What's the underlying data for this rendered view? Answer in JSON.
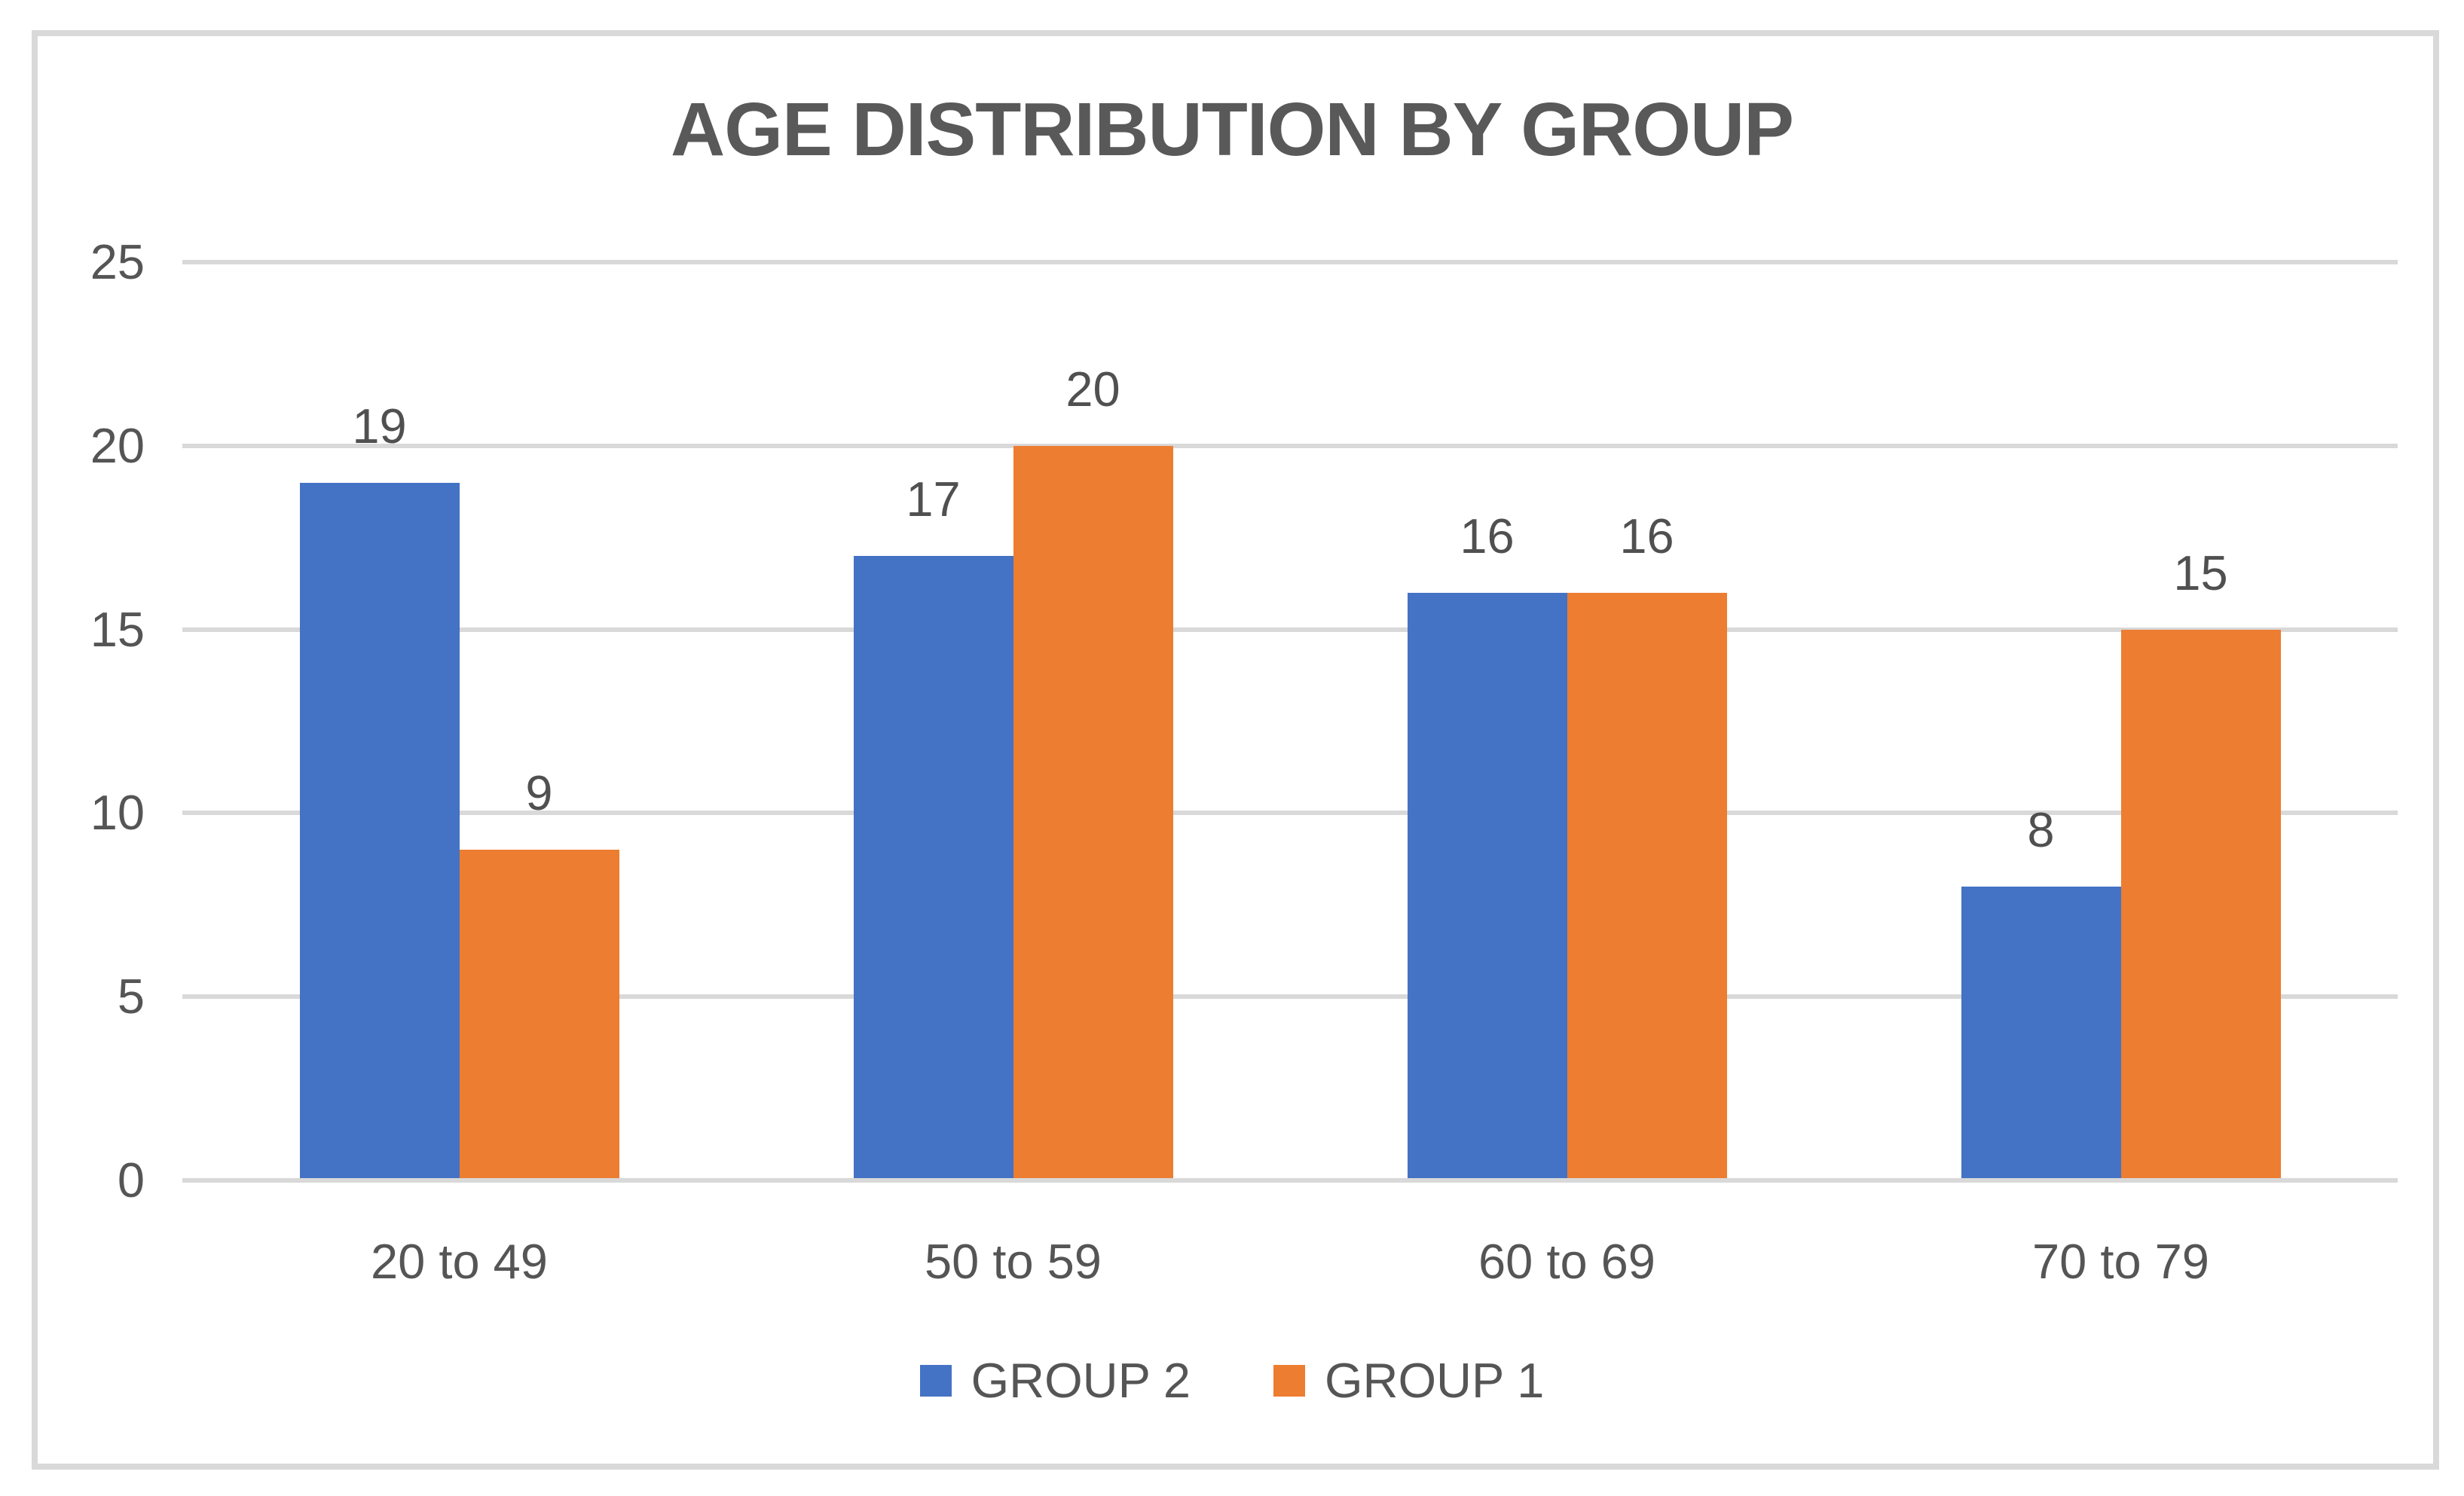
{
  "chart_data": {
    "type": "bar",
    "title": "AGE DISTRIBUTION BY GROUP",
    "categories": [
      "20 to 49",
      "50 to 59",
      "60 to 69",
      "70 to 79"
    ],
    "series": [
      {
        "name": "GROUP 2",
        "color": "#4472C4",
        "values": [
          19,
          17,
          16,
          8
        ]
      },
      {
        "name": "GROUP 1",
        "color": "#ED7D31",
        "values": [
          9,
          20,
          16,
          15
        ]
      }
    ],
    "xlabel": "",
    "ylabel": "",
    "ylim": [
      0,
      25
    ],
    "yticks": [
      0,
      5,
      10,
      15,
      20,
      25
    ],
    "grid": true,
    "data_labels": true,
    "legend_position": "bottom"
  },
  "colors": {
    "grid": "#D9D9D9",
    "frame_border": "#D9D9D9",
    "background": "#FFFFFF",
    "text": "#555555",
    "title": "#595959"
  }
}
